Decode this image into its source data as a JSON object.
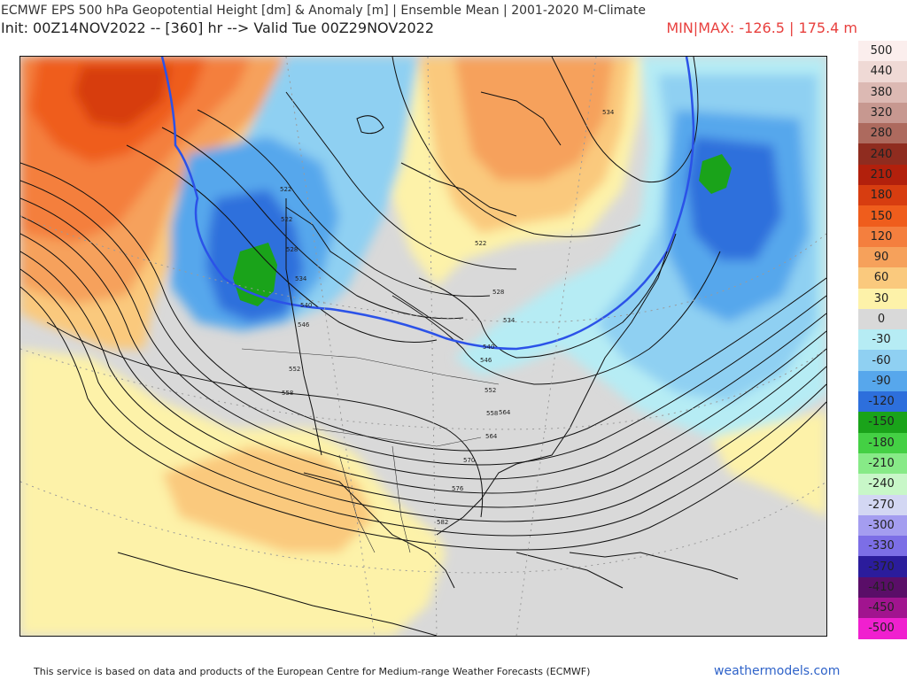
{
  "header": {
    "title": "ECMWF EPS 500 hPa Geopotential Height [dm] & Anomaly [m] | Ensemble Mean | 2001-2020 M-Climate",
    "subtitle": "Init: 00Z14NOV2022 -- [360] hr --> Valid Tue 00Z29NOV2022",
    "minmax": "MIN|MAX: -126.5 | 175.4 m"
  },
  "colorbar": [
    {
      "label": "500",
      "color": "#fbeeed"
    },
    {
      "label": "440",
      "color": "#efd9d5"
    },
    {
      "label": "380",
      "color": "#dcb9b3"
    },
    {
      "label": "320",
      "color": "#c79890"
    },
    {
      "label": "280",
      "color": "#ad6a5e"
    },
    {
      "label": "240",
      "color": "#8f2c1f"
    },
    {
      "label": "210",
      "color": "#b2200c"
    },
    {
      "label": "180",
      "color": "#d73d10"
    },
    {
      "label": "150",
      "color": "#ef5d1c"
    },
    {
      "label": "120",
      "color": "#f47f3e"
    },
    {
      "label": "90",
      "color": "#f6a15b"
    },
    {
      "label": "60",
      "color": "#fac97d"
    },
    {
      "label": "30",
      "color": "#fdf2a9"
    },
    {
      "label": "0",
      "color": "#d9d9d9"
    },
    {
      "label": "-30",
      "color": "#b6ecf4"
    },
    {
      "label": "-60",
      "color": "#8fd0f2"
    },
    {
      "label": "-90",
      "color": "#57a7ec"
    },
    {
      "label": "-120",
      "color": "#2d6fdc"
    },
    {
      "label": "-150",
      "color": "#1aa31a"
    },
    {
      "label": "-180",
      "color": "#44d044"
    },
    {
      "label": "-210",
      "color": "#87ea87"
    },
    {
      "label": "-240",
      "color": "#c8f7c8"
    },
    {
      "label": "-270",
      "color": "#d3d7f3"
    },
    {
      "label": "-300",
      "color": "#a49df0"
    },
    {
      "label": "-330",
      "color": "#7c6ee6"
    },
    {
      "label": "-370",
      "color": "#2b1c9c"
    },
    {
      "label": "-410",
      "color": "#5a0e68"
    },
    {
      "label": "-450",
      "color": "#a1148f"
    },
    {
      "label": "-500",
      "color": "#f020cf"
    }
  ],
  "contour_labels": [
    "522",
    "534",
    "522",
    "528",
    "534",
    "540",
    "546",
    "552",
    "558",
    "564",
    "570",
    "576",
    "582",
    "522",
    "528",
    "534",
    "540",
    "546",
    "552",
    "558",
    "564"
  ],
  "footer": {
    "credit": "This service is based on data and products of the European Centre for Medium-range Weather Forecasts (ECMWF)",
    "site": "weathermodels.com"
  }
}
